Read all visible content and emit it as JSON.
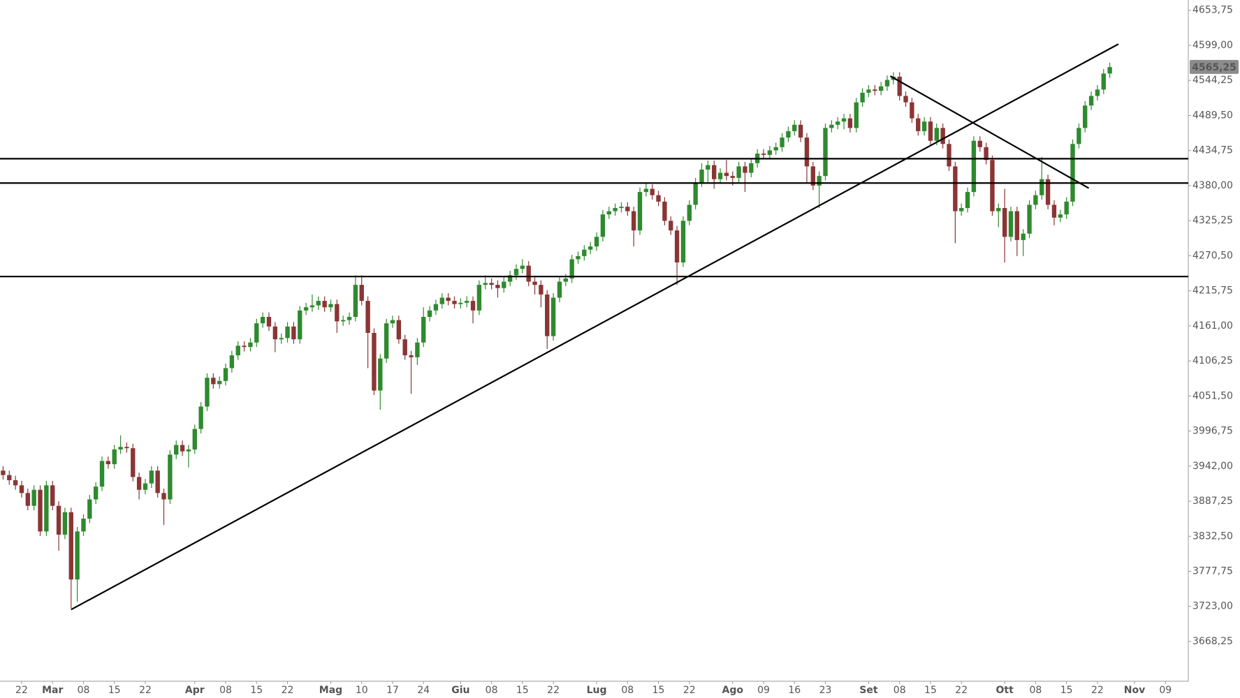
{
  "chart_data": {
    "type": "candlestick",
    "up_color": "#2e8a2e",
    "down_color": "#8a3535",
    "line_color": "#000000",
    "open": [
      3935,
      3928,
      3920,
      3912,
      3900,
      3880,
      3905,
      3840,
      3912,
      3880,
      3835,
      3870,
      3765,
      3840,
      3860,
      3890,
      3910,
      3950,
      3945,
      3968,
      3972,
      3970,
      3925,
      3905,
      3915,
      3935,
      3900,
      3890,
      3960,
      3975,
      3965,
      3968,
      4000,
      4035,
      4080,
      4070,
      4075,
      4095,
      4115,
      4130,
      4128,
      4135,
      4165,
      4175,
      4160,
      4140,
      4142,
      4160,
      4140,
      4185,
      4190,
      4193,
      4200,
      4190,
      4195,
      4168,
      4170,
      4175,
      4225,
      4200,
      4150,
      4060,
      4110,
      4165,
      4170,
      4140,
      4115,
      4112,
      4135,
      4175,
      4185,
      4195,
      4205,
      4200,
      4195,
      4197,
      4200,
      4185,
      4225,
      4228,
      4225,
      4220,
      4230,
      4240,
      4250,
      4255,
      4230,
      4225,
      4210,
      4145,
      4205,
      4230,
      4235,
      4265,
      4270,
      4280,
      4285,
      4300,
      4335,
      4340,
      4345,
      4347,
      4340,
      4310,
      4370,
      4375,
      4365,
      4355,
      4325,
      4310,
      4260,
      4325,
      4350,
      4385,
      4405,
      4412,
      4390,
      4400,
      4395,
      4392,
      4410,
      4400,
      4415,
      4430,
      4428,
      4435,
      4440,
      4455,
      4465,
      4475,
      4455,
      4410,
      4380,
      4395,
      4470,
      4475,
      4480,
      4485,
      4470,
      4510,
      4525,
      4530,
      4528,
      4535,
      4545,
      4550,
      4520,
      4510,
      4485,
      4465,
      4480,
      4450,
      4470,
      4445,
      4410,
      4340,
      4345,
      4370,
      4450,
      4440,
      4420,
      4340,
      4345,
      4300,
      4340,
      4295,
      4305,
      4350,
      4365,
      4390,
      4350,
      4330,
      4335,
      4355,
      4445,
      4470,
      4505,
      4520,
      4530,
      4555
    ],
    "high": [
      3942,
      3935,
      3927,
      3919,
      3907,
      3912,
      3912,
      3919,
      3919,
      3887,
      3877,
      3877,
      3847,
      3867,
      3897,
      3917,
      3957,
      3957,
      3975,
      3990,
      3979,
      3977,
      3932,
      3922,
      3942,
      3942,
      3907,
      3967,
      3982,
      3982,
      3975,
      4007,
      4042,
      4087,
      4087,
      4082,
      4102,
      4122,
      4137,
      4137,
      4142,
      4172,
      4182,
      4182,
      4167,
      4149,
      4167,
      4167,
      4192,
      4197,
      4210,
      4207,
      4207,
      4202,
      4202,
      4177,
      4182,
      4240,
      4240,
      4207,
      4157,
      4117,
      4172,
      4177,
      4177,
      4147,
      4122,
      4142,
      4190,
      4192,
      4202,
      4212,
      4212,
      4207,
      4204,
      4207,
      4207,
      4232,
      4240,
      4235,
      4232,
      4237,
      4247,
      4257,
      4265,
      4262,
      4237,
      4232,
      4217,
      4212,
      4237,
      4242,
      4272,
      4277,
      4287,
      4292,
      4307,
      4342,
      4347,
      4352,
      4354,
      4354,
      4347,
      4377,
      4385,
      4382,
      4372,
      4362,
      4332,
      4317,
      4332,
      4357,
      4392,
      4415,
      4419,
      4419,
      4407,
      4420,
      4402,
      4417,
      4417,
      4422,
      4437,
      4437,
      4442,
      4447,
      4462,
      4472,
      4482,
      4482,
      4462,
      4417,
      4402,
      4477,
      4482,
      4487,
      4492,
      4492,
      4517,
      4532,
      4537,
      4537,
      4542,
      4552,
      4557,
      4557,
      4527,
      4517,
      4492,
      4487,
      4487,
      4477,
      4477,
      4452,
      4417,
      4352,
      4377,
      4457,
      4457,
      4447,
      4427,
      4352,
      4375,
      4347,
      4347,
      4312,
      4357,
      4372,
      4425,
      4397,
      4357,
      4342,
      4362,
      4452,
      4477,
      4512,
      4527,
      4537,
      4562,
      4572
    ],
    "low": [
      3921,
      3913,
      3905,
      3893,
      3873,
      3873,
      3833,
      3833,
      3873,
      3810,
      3828,
      3720,
      3730,
      3833,
      3853,
      3883,
      3903,
      3938,
      3938,
      3961,
      3963,
      3918,
      3890,
      3898,
      3908,
      3893,
      3850,
      3883,
      3953,
      3958,
      3940,
      3961,
      3993,
      4028,
      4063,
      4063,
      4068,
      4088,
      4108,
      4121,
      4121,
      4128,
      4158,
      4153,
      4120,
      4133,
      4135,
      4133,
      4133,
      4178,
      4183,
      4186,
      4183,
      4183,
      4150,
      4161,
      4163,
      4168,
      4193,
      4095,
      4053,
      4030,
      4103,
      4158,
      4133,
      4108,
      4055,
      4100,
      4128,
      4168,
      4178,
      4188,
      4193,
      4188,
      4188,
      4190,
      4165,
      4178,
      4218,
      4218,
      4205,
      4213,
      4223,
      4233,
      4243,
      4223,
      4210,
      4190,
      4125,
      4138,
      4198,
      4223,
      4228,
      4258,
      4263,
      4273,
      4278,
      4293,
      4328,
      4333,
      4338,
      4333,
      4285,
      4303,
      4363,
      4358,
      4348,
      4318,
      4303,
      4225,
      4253,
      4318,
      4343,
      4378,
      4385,
      4375,
      4383,
      4388,
      4380,
      4385,
      4370,
      4393,
      4408,
      4421,
      4421,
      4428,
      4433,
      4448,
      4458,
      4448,
      4385,
      4373,
      4345,
      4388,
      4463,
      4468,
      4468,
      4463,
      4463,
      4503,
      4518,
      4521,
      4521,
      4528,
      4538,
      4513,
      4503,
      4478,
      4458,
      4458,
      4443,
      4443,
      4438,
      4403,
      4290,
      4333,
      4338,
      4363,
      4433,
      4413,
      4333,
      4315,
      4260,
      4293,
      4270,
      4270,
      4298,
      4343,
      4358,
      4343,
      4318,
      4323,
      4328,
      4348,
      4438,
      4463,
      4498,
      4513,
      4523,
      4548
    ],
    "close": [
      3928,
      3920,
      3912,
      3900,
      3880,
      3905,
      3840,
      3912,
      3880,
      3835,
      3870,
      3765,
      3840,
      3860,
      3890,
      3910,
      3950,
      3945,
      3968,
      3972,
      3970,
      3925,
      3905,
      3915,
      3935,
      3900,
      3890,
      3960,
      3975,
      3965,
      3968,
      4000,
      4035,
      4080,
      4070,
      4075,
      4095,
      4115,
      4130,
      4128,
      4135,
      4165,
      4175,
      4160,
      4140,
      4142,
      4160,
      4140,
      4185,
      4190,
      4193,
      4200,
      4190,
      4195,
      4168,
      4170,
      4175,
      4225,
      4200,
      4150,
      4060,
      4110,
      4165,
      4170,
      4140,
      4115,
      4112,
      4135,
      4175,
      4185,
      4195,
      4205,
      4200,
      4195,
      4197,
      4200,
      4185,
      4225,
      4228,
      4225,
      4220,
      4230,
      4240,
      4250,
      4255,
      4230,
      4225,
      4210,
      4145,
      4205,
      4230,
      4235,
      4265,
      4270,
      4280,
      4285,
      4300,
      4335,
      4340,
      4345,
      4347,
      4340,
      4310,
      4370,
      4375,
      4365,
      4355,
      4325,
      4310,
      4260,
      4325,
      4350,
      4385,
      4405,
      4412,
      4390,
      4400,
      4395,
      4392,
      4410,
      4400,
      4415,
      4430,
      4428,
      4435,
      4440,
      4455,
      4465,
      4475,
      4455,
      4410,
      4380,
      4395,
      4470,
      4475,
      4480,
      4485,
      4470,
      4510,
      4525,
      4530,
      4528,
      4535,
      4545,
      4550,
      4520,
      4510,
      4485,
      4465,
      4480,
      4450,
      4470,
      4445,
      4410,
      4340,
      4345,
      4370,
      4450,
      4440,
      4420,
      4340,
      4345,
      4300,
      4340,
      4295,
      4305,
      4350,
      4365,
      4390,
      4350,
      4330,
      4335,
      4355,
      4445,
      4470,
      4505,
      4520,
      4530,
      4555,
      4565
    ],
    "xlim": [
      -0.5,
      191.7
    ],
    "ylim": [
      3606.1,
      4669.8
    ],
    "xticks": [
      {
        "value": 3,
        "label": "22"
      },
      {
        "value": 8,
        "label": "Mar"
      },
      {
        "value": 13,
        "label": "08"
      },
      {
        "value": 18,
        "label": "15"
      },
      {
        "value": 23,
        "label": "22"
      },
      {
        "value": 31,
        "label": "Apr"
      },
      {
        "value": 36,
        "label": "08"
      },
      {
        "value": 41,
        "label": "15"
      },
      {
        "value": 46,
        "label": "22"
      },
      {
        "value": 53,
        "label": "Mag"
      },
      {
        "value": 58,
        "label": "10"
      },
      {
        "value": 63,
        "label": "17"
      },
      {
        "value": 68,
        "label": "24"
      },
      {
        "value": 74,
        "label": "Giu"
      },
      {
        "value": 79,
        "label": "08"
      },
      {
        "value": 84,
        "label": "15"
      },
      {
        "value": 89,
        "label": "22"
      },
      {
        "value": 96,
        "label": "Lug"
      },
      {
        "value": 101,
        "label": "08"
      },
      {
        "value": 106,
        "label": "15"
      },
      {
        "value": 111,
        "label": "22"
      },
      {
        "value": 118,
        "label": "Ago"
      },
      {
        "value": 123,
        "label": "09"
      },
      {
        "value": 128,
        "label": "16"
      },
      {
        "value": 133,
        "label": "23"
      },
      {
        "value": 140,
        "label": "Set"
      },
      {
        "value": 145,
        "label": "08"
      },
      {
        "value": 150,
        "label": "15"
      },
      {
        "value": 155,
        "label": "22"
      },
      {
        "value": 162,
        "label": "Ott"
      },
      {
        "value": 167,
        "label": "08"
      },
      {
        "value": 172,
        "label": "15"
      },
      {
        "value": 177,
        "label": "22"
      },
      {
        "value": 183,
        "label": "Nov"
      },
      {
        "value": 188,
        "label": "09"
      }
    ],
    "yticks": [
      {
        "value": 3668.25,
        "label": "3668,25"
      },
      {
        "value": 3723,
        "label": "3723,00"
      },
      {
        "value": 3777.75,
        "label": "3777,75"
      },
      {
        "value": 3832.5,
        "label": "3832,50"
      },
      {
        "value": 3887.25,
        "label": "3887,25"
      },
      {
        "value": 3942,
        "label": "3942,00"
      },
      {
        "value": 3996.75,
        "label": "3996,75"
      },
      {
        "value": 4051.5,
        "label": "4051,50"
      },
      {
        "value": 4106.25,
        "label": "4106,25"
      },
      {
        "value": 4161,
        "label": "4161,00"
      },
      {
        "value": 4215.75,
        "label": "4215,75"
      },
      {
        "value": 4270.5,
        "label": "4270,50"
      },
      {
        "value": 4325.25,
        "label": "4325,25"
      },
      {
        "value": 4380,
        "label": "4380,00"
      },
      {
        "value": 4434.75,
        "label": "4434,75"
      },
      {
        "value": 4489.5,
        "label": "4489,50"
      },
      {
        "value": 4544.25,
        "label": "4544,25"
      },
      {
        "value": 4599,
        "label": "4599,00"
      },
      {
        "value": 4653.75,
        "label": "4653,75"
      }
    ],
    "last_price": {
      "value": 4565.25,
      "label": "4565,25"
    },
    "hlines": [
      4422,
      4384,
      4238
    ],
    "trendlines": [
      {
        "x": [
          11,
          180.4
        ],
        "y": [
          3718,
          4601
        ]
      },
      {
        "x": [
          143.5,
          175.6
        ],
        "y": [
          4551,
          4376
        ]
      }
    ]
  }
}
